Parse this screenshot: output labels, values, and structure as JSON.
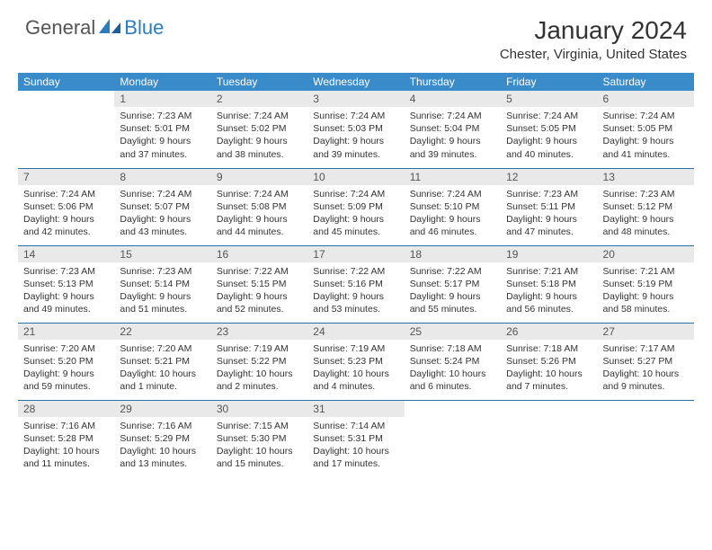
{
  "logo": {
    "text1": "General",
    "text2": "Blue"
  },
  "title": "January 2024",
  "location": "Chester, Virginia, United States",
  "colors": {
    "header_bg": "#3a8bc9",
    "header_text": "#ffffff",
    "daynum_bg": "#e9e9e9",
    "row_divider": "#2a6fa8",
    "logo_gray": "#555555",
    "logo_blue": "#2a7bbf"
  },
  "weekdays": [
    "Sunday",
    "Monday",
    "Tuesday",
    "Wednesday",
    "Thursday",
    "Friday",
    "Saturday"
  ],
  "weeks": [
    [
      null,
      {
        "n": "1",
        "sr": "7:23 AM",
        "ss": "5:01 PM",
        "dl": "9 hours and 37 minutes."
      },
      {
        "n": "2",
        "sr": "7:24 AM",
        "ss": "5:02 PM",
        "dl": "9 hours and 38 minutes."
      },
      {
        "n": "3",
        "sr": "7:24 AM",
        "ss": "5:03 PM",
        "dl": "9 hours and 39 minutes."
      },
      {
        "n": "4",
        "sr": "7:24 AM",
        "ss": "5:04 PM",
        "dl": "9 hours and 39 minutes."
      },
      {
        "n": "5",
        "sr": "7:24 AM",
        "ss": "5:05 PM",
        "dl": "9 hours and 40 minutes."
      },
      {
        "n": "6",
        "sr": "7:24 AM",
        "ss": "5:05 PM",
        "dl": "9 hours and 41 minutes."
      }
    ],
    [
      {
        "n": "7",
        "sr": "7:24 AM",
        "ss": "5:06 PM",
        "dl": "9 hours and 42 minutes."
      },
      {
        "n": "8",
        "sr": "7:24 AM",
        "ss": "5:07 PM",
        "dl": "9 hours and 43 minutes."
      },
      {
        "n": "9",
        "sr": "7:24 AM",
        "ss": "5:08 PM",
        "dl": "9 hours and 44 minutes."
      },
      {
        "n": "10",
        "sr": "7:24 AM",
        "ss": "5:09 PM",
        "dl": "9 hours and 45 minutes."
      },
      {
        "n": "11",
        "sr": "7:24 AM",
        "ss": "5:10 PM",
        "dl": "9 hours and 46 minutes."
      },
      {
        "n": "12",
        "sr": "7:23 AM",
        "ss": "5:11 PM",
        "dl": "9 hours and 47 minutes."
      },
      {
        "n": "13",
        "sr": "7:23 AM",
        "ss": "5:12 PM",
        "dl": "9 hours and 48 minutes."
      }
    ],
    [
      {
        "n": "14",
        "sr": "7:23 AM",
        "ss": "5:13 PM",
        "dl": "9 hours and 49 minutes."
      },
      {
        "n": "15",
        "sr": "7:23 AM",
        "ss": "5:14 PM",
        "dl": "9 hours and 51 minutes."
      },
      {
        "n": "16",
        "sr": "7:22 AM",
        "ss": "5:15 PM",
        "dl": "9 hours and 52 minutes."
      },
      {
        "n": "17",
        "sr": "7:22 AM",
        "ss": "5:16 PM",
        "dl": "9 hours and 53 minutes."
      },
      {
        "n": "18",
        "sr": "7:22 AM",
        "ss": "5:17 PM",
        "dl": "9 hours and 55 minutes."
      },
      {
        "n": "19",
        "sr": "7:21 AM",
        "ss": "5:18 PM",
        "dl": "9 hours and 56 minutes."
      },
      {
        "n": "20",
        "sr": "7:21 AM",
        "ss": "5:19 PM",
        "dl": "9 hours and 58 minutes."
      }
    ],
    [
      {
        "n": "21",
        "sr": "7:20 AM",
        "ss": "5:20 PM",
        "dl": "9 hours and 59 minutes."
      },
      {
        "n": "22",
        "sr": "7:20 AM",
        "ss": "5:21 PM",
        "dl": "10 hours and 1 minute."
      },
      {
        "n": "23",
        "sr": "7:19 AM",
        "ss": "5:22 PM",
        "dl": "10 hours and 2 minutes."
      },
      {
        "n": "24",
        "sr": "7:19 AM",
        "ss": "5:23 PM",
        "dl": "10 hours and 4 minutes."
      },
      {
        "n": "25",
        "sr": "7:18 AM",
        "ss": "5:24 PM",
        "dl": "10 hours and 6 minutes."
      },
      {
        "n": "26",
        "sr": "7:18 AM",
        "ss": "5:26 PM",
        "dl": "10 hours and 7 minutes."
      },
      {
        "n": "27",
        "sr": "7:17 AM",
        "ss": "5:27 PM",
        "dl": "10 hours and 9 minutes."
      }
    ],
    [
      {
        "n": "28",
        "sr": "7:16 AM",
        "ss": "5:28 PM",
        "dl": "10 hours and 11 minutes."
      },
      {
        "n": "29",
        "sr": "7:16 AM",
        "ss": "5:29 PM",
        "dl": "10 hours and 13 minutes."
      },
      {
        "n": "30",
        "sr": "7:15 AM",
        "ss": "5:30 PM",
        "dl": "10 hours and 15 minutes."
      },
      {
        "n": "31",
        "sr": "7:14 AM",
        "ss": "5:31 PM",
        "dl": "10 hours and 17 minutes."
      },
      null,
      null,
      null
    ]
  ],
  "labels": {
    "sunrise": "Sunrise: ",
    "sunset": "Sunset: ",
    "daylight": "Daylight: "
  }
}
